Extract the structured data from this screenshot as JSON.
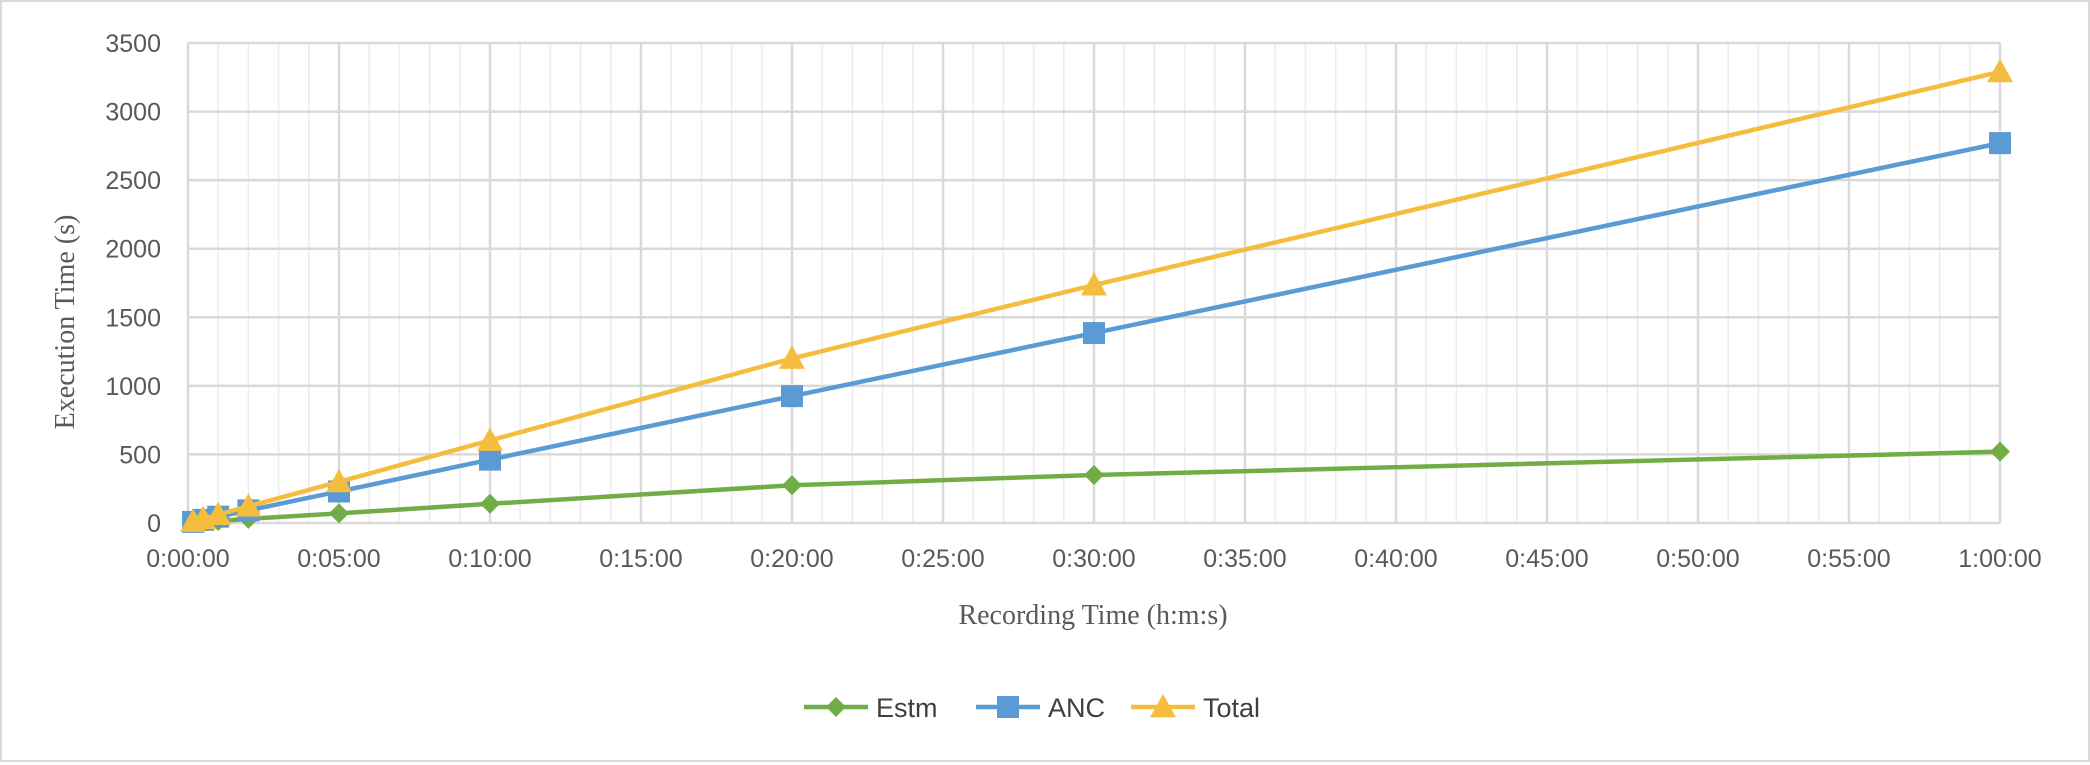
{
  "chart_data": {
    "type": "line",
    "title": "",
    "xlabel": "Recording Time (h:m:s)",
    "ylabel": "Execution Time (s)",
    "x_unit": "h:m:s",
    "x": [
      "0:00:10",
      "0:00:30",
      "0:01:00",
      "0:02:00",
      "0:05:00",
      "0:10:00",
      "0:20:00",
      "0:30:00",
      "1:00:00"
    ],
    "xlim": [
      "0:00:00",
      "1:00:00"
    ],
    "x_ticks": [
      "0:00:00",
      "0:05:00",
      "0:10:00",
      "0:15:00",
      "0:20:00",
      "0:25:00",
      "0:30:00",
      "0:35:00",
      "0:40:00",
      "0:45:00",
      "0:50:00",
      "0:55:00",
      "1:00:00"
    ],
    "ylim": [
      0,
      3500
    ],
    "y_ticks": [
      "0",
      "500",
      "1000",
      "1500",
      "2000",
      "2500",
      "3000",
      "3500"
    ],
    "grid": true,
    "legend_position": "bottom",
    "series": [
      {
        "name": "Estm",
        "color": "#70ad47",
        "marker": "diamond",
        "values": [
          3,
          8,
          15,
          30,
          70,
          140,
          275,
          350,
          520
        ]
      },
      {
        "name": "ANC",
        "color": "#5b9bd5",
        "marker": "square",
        "values": [
          8,
          23,
          46,
          92,
          230,
          462,
          925,
          1385,
          2770
        ]
      },
      {
        "name": "Total",
        "color": "#f5bd3e",
        "marker": "triangle",
        "values": [
          11,
          31,
          61,
          122,
          300,
          602,
          1200,
          1735,
          3290
        ]
      }
    ]
  }
}
